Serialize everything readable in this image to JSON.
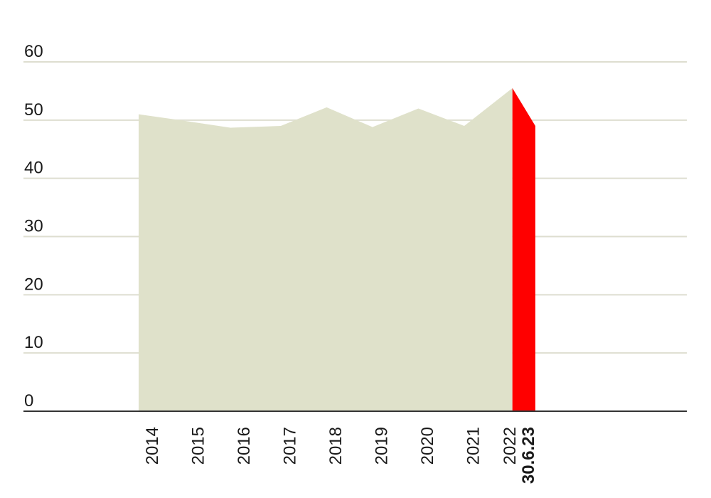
{
  "chart_data": {
    "type": "area",
    "title": "",
    "xlabel": "",
    "ylabel": "",
    "ylim": [
      0,
      60
    ],
    "yticks": [
      "0",
      "10",
      "20",
      "30",
      "40",
      "50",
      "60"
    ],
    "grid": true,
    "series": [
      {
        "points": [
          {
            "x": 2014.0,
            "y": 51.0
          },
          {
            "x": 2014.9,
            "y": 50.0
          },
          {
            "x": 2016.0,
            "y": 48.7
          },
          {
            "x": 2017.1,
            "y": 49.0
          },
          {
            "x": 2018.1,
            "y": 52.2
          },
          {
            "x": 2019.1,
            "y": 48.8
          },
          {
            "x": 2020.1,
            "y": 52.0
          },
          {
            "x": 2021.1,
            "y": 49.0
          },
          {
            "x": 2022.15,
            "y": 55.5
          }
        ],
        "color": "#dfe1ca"
      },
      {
        "points": [
          {
            "x": 2022.15,
            "y": 55.5
          },
          {
            "x": 2022.65,
            "y": 49.0
          }
        ],
        "color": "#ff0000"
      }
    ],
    "x_labels": [
      {
        "x": 2014.3,
        "label": "2014"
      },
      {
        "x": 2015.3,
        "label": "2015"
      },
      {
        "x": 2016.3,
        "label": "2016"
      },
      {
        "x": 2017.3,
        "label": "2017"
      },
      {
        "x": 2018.3,
        "label": "2018"
      },
      {
        "x": 2019.3,
        "label": "2019"
      },
      {
        "x": 2020.3,
        "label": "2020"
      },
      {
        "x": 2021.3,
        "label": "2021"
      },
      {
        "x": 2022.1,
        "label": "2022"
      },
      {
        "x": 2022.5,
        "label": "30.6.23",
        "highlight": true
      }
    ],
    "colors": {
      "area": "#dfe1ca",
      "highlight": "#ff0000",
      "grid": "#deded0",
      "axis": "#333333"
    }
  }
}
